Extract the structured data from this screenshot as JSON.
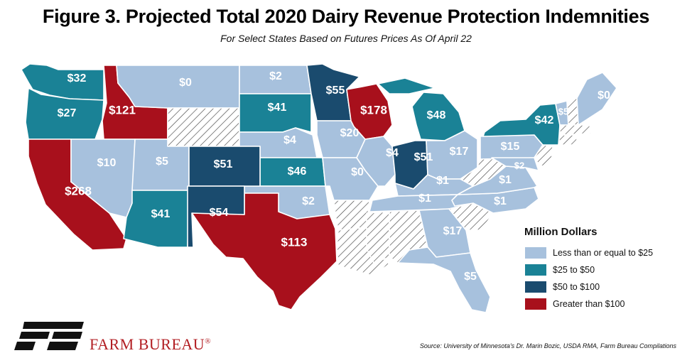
{
  "title": "Figure 3. Projected Total 2020 Dairy Revenue Protection Indemnities",
  "subtitle": "For Select States Based on Futures Prices As Of April 22",
  "colors": {
    "low": "#a7c1dd",
    "mid": "#1a8296",
    "high": "#1a4b6e",
    "top": "#a8101c",
    "na_hatch": "#444444",
    "brand": "#b21e23"
  },
  "legend": {
    "title": "Million Dollars",
    "items": [
      {
        "label": "Less than or equal to $25",
        "color": "#a7c1dd"
      },
      {
        "label": "$25 to $50",
        "color": "#1a8296"
      },
      {
        "label": "$50 to $100",
        "color": "#1a4b6e"
      },
      {
        "label": "Greater than $100",
        "color": "#a8101c"
      }
    ]
  },
  "states": {
    "WA": {
      "value": "$32",
      "cat": "mid"
    },
    "OR": {
      "value": "$27",
      "cat": "mid"
    },
    "ID": {
      "value": "$121",
      "cat": "top"
    },
    "MT": {
      "value": "$0",
      "cat": "low"
    },
    "ND": {
      "value": "$2",
      "cat": "low"
    },
    "MN": {
      "value": "$55",
      "cat": "high"
    },
    "WI": {
      "value": "$178",
      "cat": "top"
    },
    "MI": {
      "value": "$48",
      "cat": "mid"
    },
    "ME": {
      "value": "$0",
      "cat": "low"
    },
    "VT": {
      "value": "$5",
      "cat": "low"
    },
    "NY": {
      "value": "$42",
      "cat": "mid"
    },
    "SD": {
      "value": "$41",
      "cat": "mid"
    },
    "WY": {
      "value": "",
      "cat": "na"
    },
    "CA": {
      "value": "$268",
      "cat": "top"
    },
    "NV": {
      "value": "$10",
      "cat": "low"
    },
    "UT": {
      "value": "$5",
      "cat": "low"
    },
    "CO": {
      "value": "$51",
      "cat": "high"
    },
    "NE": {
      "value": "$4",
      "cat": "low"
    },
    "IA": {
      "value": "$20",
      "cat": "low"
    },
    "IL": {
      "value": "$4",
      "cat": "low"
    },
    "IN": {
      "value": "$51",
      "cat": "high"
    },
    "OH": {
      "value": "$17",
      "cat": "low"
    },
    "PA": {
      "value": "$15",
      "cat": "low"
    },
    "KS": {
      "value": "$46",
      "cat": "mid"
    },
    "MO": {
      "value": "$0",
      "cat": "low"
    },
    "KY": {
      "value": "$1",
      "cat": "low"
    },
    "VA": {
      "value": "$1",
      "cat": "low"
    },
    "AZ": {
      "value": "$41",
      "cat": "mid"
    },
    "NM": {
      "value": "$54",
      "cat": "high"
    },
    "OK": {
      "value": "$2",
      "cat": "low"
    },
    "TN": {
      "value": "$1",
      "cat": "low"
    },
    "NC": {
      "value": "$1",
      "cat": "low"
    },
    "TX": {
      "value": "$113",
      "cat": "top"
    },
    "GA": {
      "value": "$17",
      "cat": "low"
    },
    "FL": {
      "value": "$5",
      "cat": "low"
    },
    "AR": {
      "value": "",
      "cat": "na"
    },
    "LA": {
      "value": "",
      "cat": "na"
    },
    "MS": {
      "value": "",
      "cat": "na"
    },
    "AL": {
      "value": "",
      "cat": "na"
    },
    "SC": {
      "value": "",
      "cat": "na"
    },
    "WV": {
      "value": "",
      "cat": "na"
    },
    "NH": {
      "value": "",
      "cat": "na"
    },
    "MA": {
      "value": "",
      "cat": "na"
    },
    "CT": {
      "value": "",
      "cat": "na"
    },
    "NJ": {
      "value": "",
      "cat": "na"
    },
    "MD": {
      "value": "$2",
      "cat": "low"
    }
  },
  "org_name": "FARM BUREAU",
  "org_mark": "®",
  "source": "Source: University of Minnesota's Dr. Marin Bozic, USDA RMA, Farm Bureau Compilations"
}
